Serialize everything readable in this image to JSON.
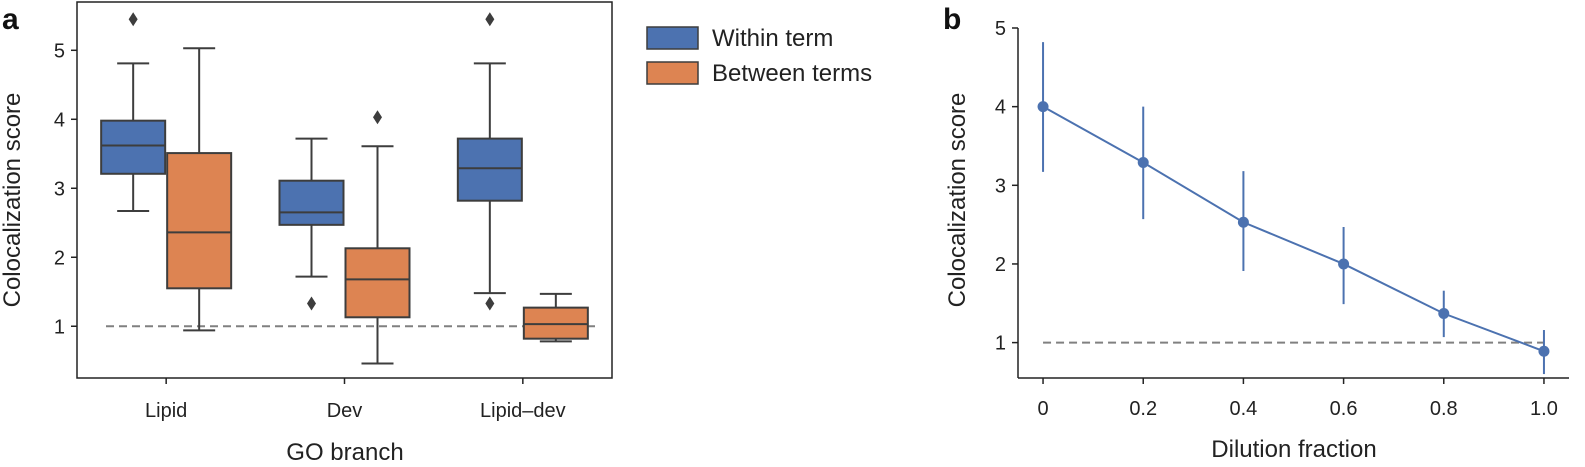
{
  "panels": {
    "a": "a",
    "b": "b"
  },
  "chart_data": [
    {
      "type": "box",
      "xlabel": "GO branch",
      "ylabel": "Colocalization score",
      "categories": [
        "Lipid",
        "Dev",
        "Lipid–dev"
      ],
      "ylim": [
        0.25,
        5.7
      ],
      "yticks": [
        1,
        2,
        3,
        4,
        5
      ],
      "grid": false,
      "legend": {
        "position": "outside-right-top"
      },
      "reference_line": {
        "y": 1.0,
        "style": "dashed",
        "color": "#808080"
      },
      "series": [
        {
          "name": "Within term",
          "color": "#4c72b0",
          "boxes": [
            {
              "category": "Lipid",
              "whisker_low": 2.67,
              "q1": 3.21,
              "median": 3.62,
              "q3": 3.98,
              "whisker_high": 4.81,
              "outliers": [
                5.45
              ]
            },
            {
              "category": "Dev",
              "whisker_low": 1.72,
              "q1": 2.47,
              "median": 2.65,
              "q3": 3.11,
              "whisker_high": 3.72,
              "outliers": [
                1.33
              ]
            },
            {
              "category": "Lipid–dev",
              "whisker_low": 1.48,
              "q1": 2.82,
              "median": 3.29,
              "q3": 3.72,
              "whisker_high": 4.81,
              "outliers": [
                1.33,
                5.45
              ]
            }
          ]
        },
        {
          "name": "Between terms",
          "color": "#dd8452",
          "boxes": [
            {
              "category": "Lipid",
              "whisker_low": 0.94,
              "q1": 1.55,
              "median": 2.36,
              "q3": 3.51,
              "whisker_high": 5.03,
              "outliers": []
            },
            {
              "category": "Dev",
              "whisker_low": 0.46,
              "q1": 1.13,
              "median": 1.68,
              "q3": 2.13,
              "whisker_high": 3.61,
              "outliers": [
                4.03
              ]
            },
            {
              "category": "Lipid–dev",
              "whisker_low": 0.78,
              "q1": 0.82,
              "median": 1.03,
              "q3": 1.27,
              "whisker_high": 1.47,
              "outliers": []
            }
          ]
        }
      ]
    },
    {
      "type": "line",
      "xlabel": "Dilution fraction",
      "ylabel": "Colocalization score",
      "x": [
        0,
        0.2,
        0.4,
        0.6,
        0.8,
        1.0
      ],
      "xtick_labels": [
        "0",
        "0.2",
        "0.4",
        "0.6",
        "0.8",
        "1.0"
      ],
      "xlim": [
        -0.05,
        1.05
      ],
      "ylim": [
        0.55,
        5.0
      ],
      "yticks": [
        1,
        2,
        3,
        4,
        5
      ],
      "grid": false,
      "reference_line": {
        "y": 1.0,
        "style": "dashed",
        "color": "#808080"
      },
      "series": [
        {
          "color": "#4c72b0",
          "values": [
            4.0,
            3.29,
            2.53,
            2.0,
            1.37,
            0.89
          ],
          "error_low": [
            3.17,
            2.57,
            1.91,
            1.49,
            1.07,
            0.6
          ],
          "error_high": [
            4.82,
            4.0,
            3.18,
            2.47,
            1.66,
            1.16
          ]
        }
      ]
    }
  ]
}
